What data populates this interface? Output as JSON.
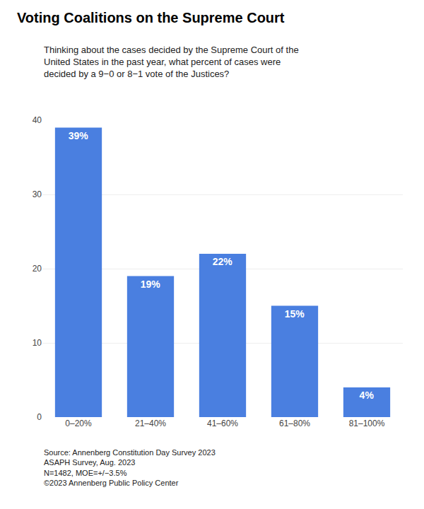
{
  "chart_data": {
    "type": "bar",
    "title": "Voting Coalitions on the Supreme Court",
    "subtitle": "Thinking about the cases decided by the Supreme Court of the\nUnited States in the past year, what percent of cases were\ndecided by a 9−0 or 8−1 vote of the Justices?",
    "footnote": "Source: Annenberg Constitution Day Survey 2023\nASAPH Survey, Aug. 2023\nN=1482, MOE=+/−3.5%\n©2023 Annenberg Public Policy Center",
    "categories": [
      "0–20%",
      "21–40%",
      "41–60%",
      "61–80%",
      "81–100%"
    ],
    "values": [
      39,
      19,
      22,
      15,
      4
    ],
    "value_labels": [
      "39%",
      "19%",
      "22%",
      "15%",
      "4%"
    ],
    "data_labels": true,
    "color": "#4a7fe0",
    "ylim": [
      0,
      40
    ],
    "yticks": [
      0,
      10,
      20,
      30,
      40
    ],
    "grid": true
  }
}
